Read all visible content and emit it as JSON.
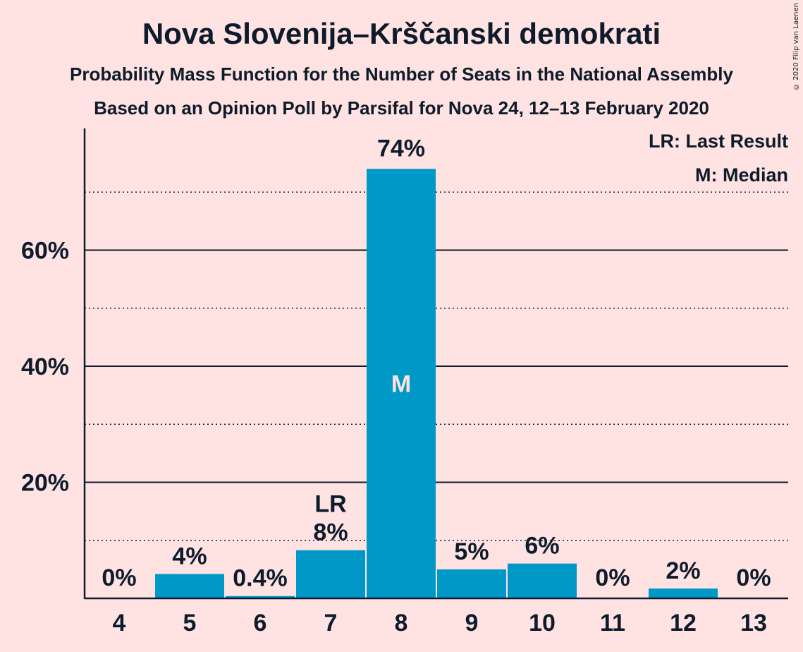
{
  "header": {
    "title": "Nova Slovenija–Krščanski demokrati",
    "subtitle": "Probability Mass Function for the Number of Seats in the National Assembly",
    "subtitle2": "Based on an Opinion Poll by Parsifal for Nova 24, 12–13 February 2020",
    "copyright": "© 2020 Filip van Laenen"
  },
  "legend": {
    "lr": "LR: Last Result",
    "m": "M: Median"
  },
  "colors": {
    "bar": "#0099C7",
    "background": "#FFE3E3",
    "text": "#0D1B2A"
  },
  "chart_data": {
    "type": "bar",
    "title": "Nova Slovenija–Krščanski demokrati",
    "categories": [
      "4",
      "5",
      "6",
      "7",
      "8",
      "9",
      "10",
      "11",
      "12",
      "13"
    ],
    "values": [
      0,
      4.2,
      0.4,
      8.3,
      74,
      5,
      6,
      0,
      1.7,
      0
    ],
    "value_labels": [
      "0%",
      "4%",
      "0.4%",
      "8%",
      "74%",
      "5%",
      "6%",
      "0%",
      "2%",
      "0%"
    ],
    "ylim": [
      0,
      80
    ],
    "yticks": [
      20,
      40,
      60
    ],
    "ytick_labels": [
      "20%",
      "40%",
      "60%"
    ],
    "minor_gridlines": [
      10,
      30,
      50,
      70
    ],
    "last_result": {
      "category": "7",
      "label": "LR"
    },
    "median": {
      "category": "8",
      "label": "M"
    },
    "legend_position": "top-right",
    "grid": true
  }
}
